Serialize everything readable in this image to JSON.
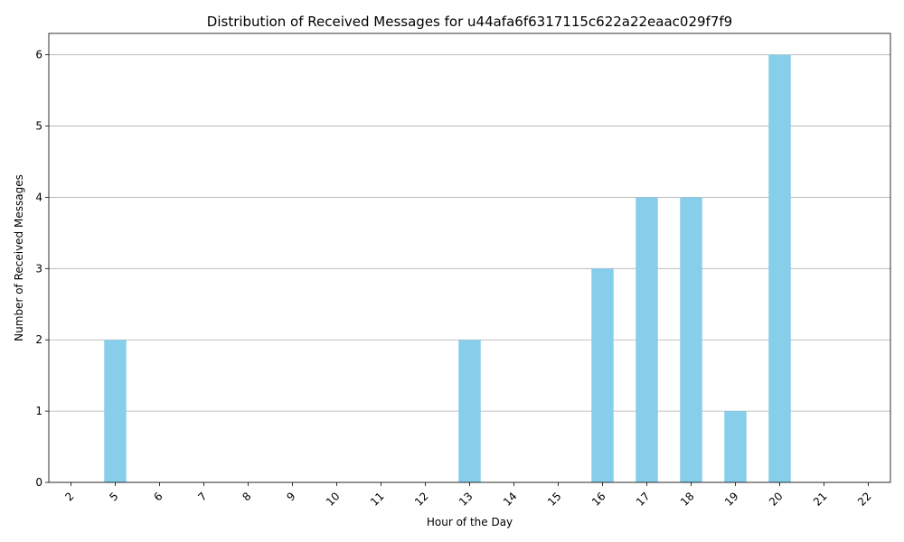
{
  "chart_data": {
    "type": "bar",
    "title": "Distribution of Received Messages for u44afa6f6317115c622a22eaac029f7f9",
    "xlabel": "Hour of the Day",
    "ylabel": "Number of Received Messages",
    "categories": [
      "2",
      "5",
      "6",
      "7",
      "8",
      "9",
      "10",
      "11",
      "12",
      "13",
      "14",
      "15",
      "16",
      "17",
      "18",
      "19",
      "20",
      "21",
      "22"
    ],
    "values": [
      0,
      2,
      0,
      0,
      0,
      0,
      0,
      0,
      0,
      2,
      0,
      0,
      3,
      4,
      4,
      1,
      6,
      0,
      0
    ],
    "ylim": [
      0,
      6.3
    ],
    "yticks": [
      0,
      1,
      2,
      3,
      4,
      5,
      6
    ],
    "grid": "y-axis",
    "x_tick_rotation": "45 degrees",
    "bar_color": "#87ceeb",
    "grid_color": "#b0b0b0"
  }
}
